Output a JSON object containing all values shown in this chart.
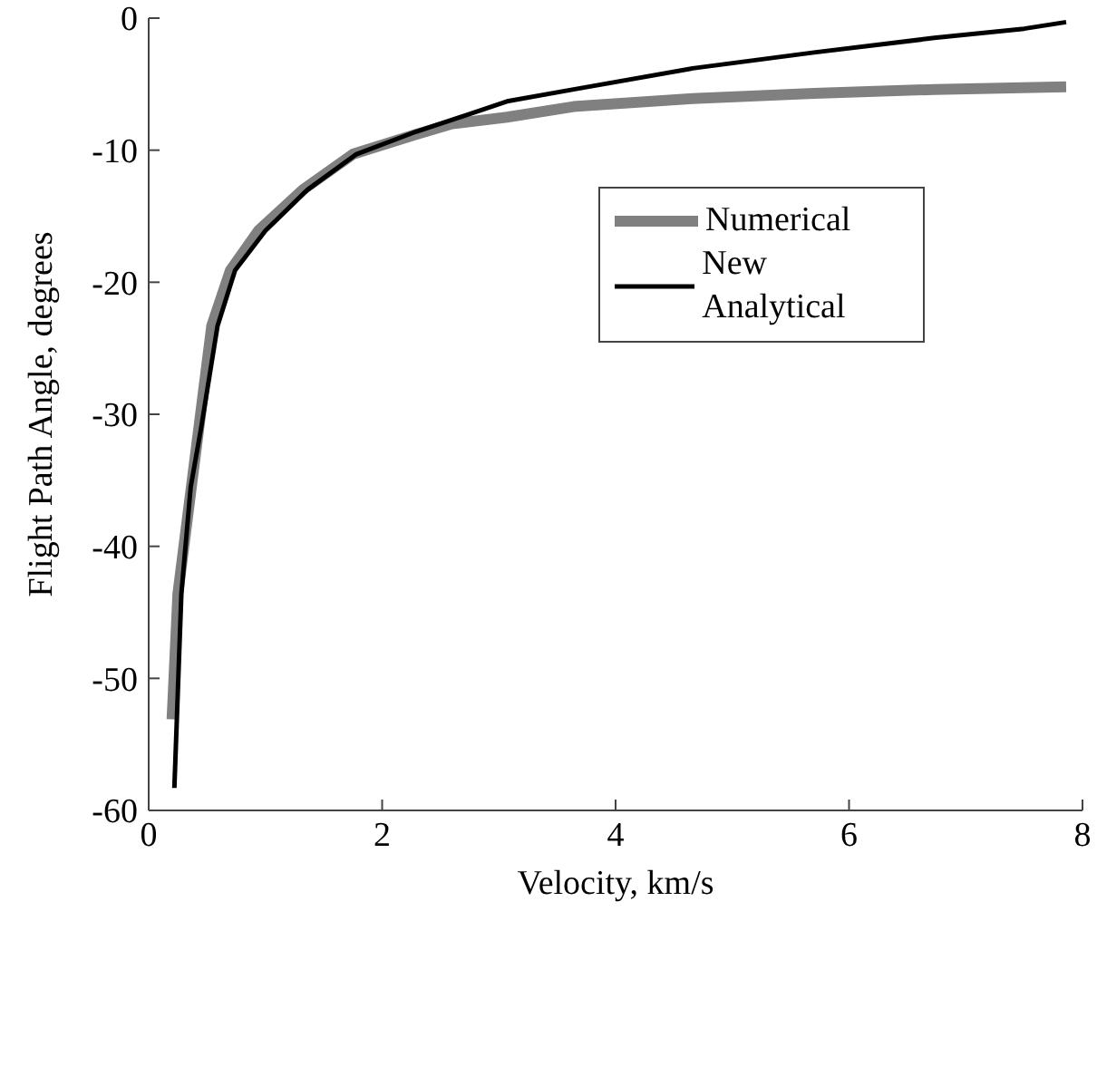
{
  "chart_data": {
    "type": "line",
    "xlabel": "Velocity, km/s",
    "ylabel": "Flight Path Angle, degrees",
    "xlim": [
      0,
      8
    ],
    "xticks": [
      0,
      2,
      4,
      6,
      8
    ],
    "ylim": [
      -60,
      0
    ],
    "yticks": [
      -60,
      -50,
      -40,
      -30,
      -20,
      -10,
      0
    ],
    "grid": false,
    "legend": "top right",
    "line_style": "solid",
    "marker": "none",
    "series": [
      {
        "name": "Numerical",
        "color": "#808080",
        "x": [
          0.2,
          0.25,
          0.54,
          0.7,
          0.94,
          1.32,
          1.75,
          2.29,
          2.6,
          3.07,
          3.64,
          4.66,
          5.7,
          6.73,
          7.86
        ],
        "values": [
          -53.1,
          -43.6,
          -23.3,
          -19.1,
          -16.1,
          -13,
          -10.3,
          -8.8,
          -8,
          -7.5,
          -6.7,
          -6.1,
          -5.7,
          -5.4,
          -5.2
        ]
      },
      {
        "name": "New Analytical",
        "color": "#000000",
        "x": [
          0.22,
          0.28,
          0.36,
          0.45,
          0.59,
          0.74,
          1,
          1.36,
          1.78,
          2.29,
          2.6,
          3.07,
          3.64,
          4.66,
          5.7,
          6.73,
          7.5,
          7.86
        ],
        "values": [
          -58.3,
          -43.6,
          -35.5,
          -31,
          -23.3,
          -19.1,
          -16.1,
          -13,
          -10.3,
          -8.6,
          -7.7,
          -6.3,
          -5.4,
          -3.8,
          -2.6,
          -1.5,
          -0.8,
          -0.3
        ]
      }
    ]
  }
}
